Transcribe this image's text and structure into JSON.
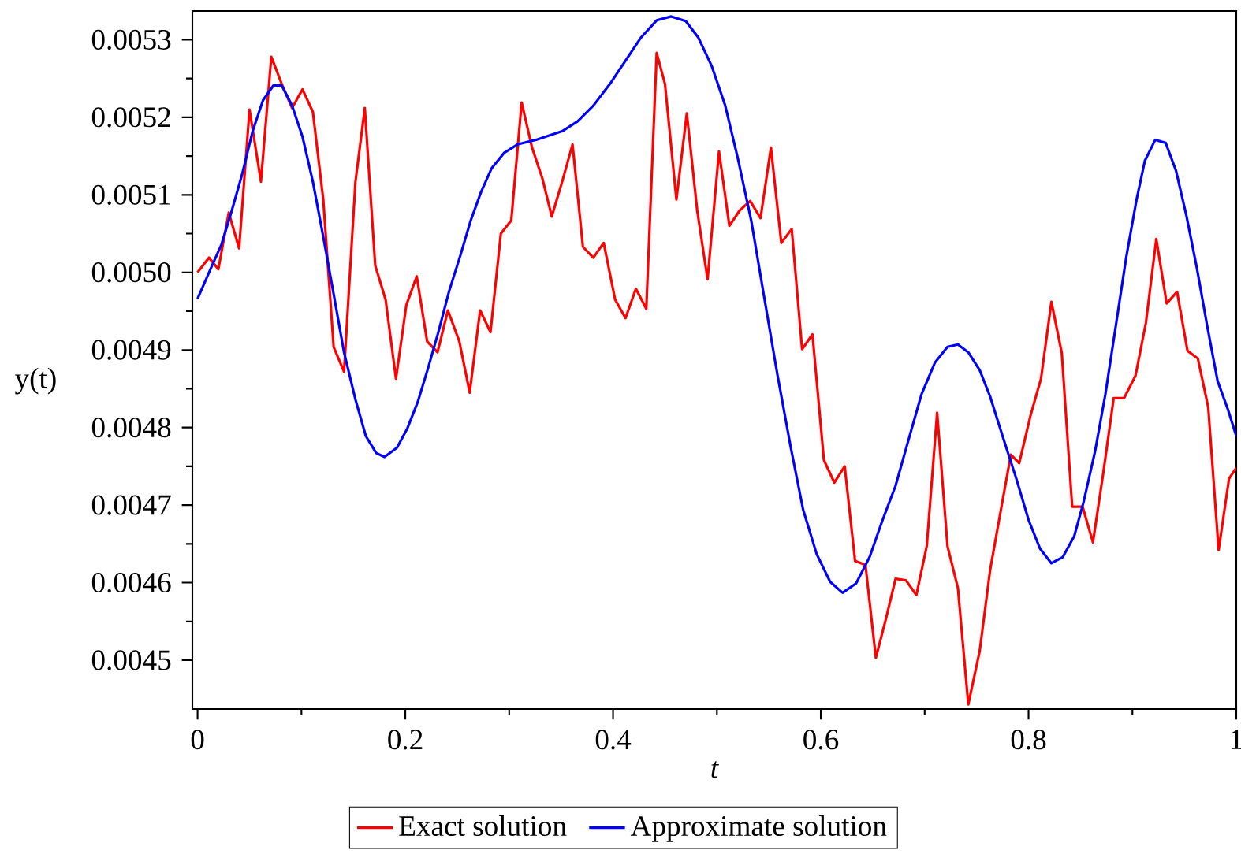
{
  "chart_data": {
    "type": "line",
    "xlabel": "t",
    "ylabel": "y(t)",
    "xlim": [
      -0.005,
      1.0
    ],
    "ylim": [
      0.004437,
      0.005337
    ],
    "xticks": [
      0,
      0.2,
      0.4,
      0.6,
      0.8,
      1
    ],
    "yticks": [
      0.0045,
      0.0046,
      0.0047,
      0.0048,
      0.0049,
      {
        "value": 0.005,
        "label": "0.0050"
      },
      0.0051,
      0.0052,
      0.0053
    ],
    "grid": false,
    "legend": "bottom",
    "marker": "none",
    "line_style": "solid",
    "series": [
      {
        "name": "Exact solution",
        "color": "#ff0000",
        "x": [
          0,
          0.011,
          0.02,
          0.03,
          0.04,
          0.05,
          0.061,
          0.071,
          0.081,
          0.091,
          0.101,
          0.111,
          0.121,
          0.131,
          0.141,
          0.152,
          0.161,
          0.171,
          0.181,
          0.191,
          0.201,
          0.211,
          0.221,
          0.231,
          0.241,
          0.252,
          0.262,
          0.272,
          0.282,
          0.292,
          0.302,
          0.312,
          0.322,
          0.332,
          0.341,
          0.351,
          0.361,
          0.371,
          0.381,
          0.391,
          0.402,
          0.412,
          0.422,
          0.432,
          0.442,
          0.45,
          0.461,
          0.471,
          0.481,
          0.491,
          0.502,
          0.512,
          0.522,
          0.532,
          0.542,
          0.552,
          0.562,
          0.572,
          0.582,
          0.592,
          0.603,
          0.613,
          0.623,
          0.633,
          0.643,
          0.653,
          0.663,
          0.672,
          0.682,
          0.692,
          0.702,
          0.712,
          0.722,
          0.732,
          0.742,
          0.753,
          0.763,
          0.773,
          0.783,
          0.791,
          0.802,
          0.812,
          0.822,
          0.832,
          0.842,
          0.852,
          0.862,
          0.872,
          0.882,
          0.892,
          0.903,
          0.913,
          0.923,
          0.933,
          0.943,
          0.953,
          0.963,
          0.973,
          0.983,
          0.993,
          1.0
        ],
        "values": [
          0.005,
          0.005019,
          0.005004,
          0.005077,
          0.005031,
          0.00521,
          0.005117,
          0.005278,
          0.005243,
          0.005212,
          0.005236,
          0.005207,
          0.005094,
          0.004904,
          0.004872,
          0.005117,
          0.005212,
          0.005009,
          0.004965,
          0.004863,
          0.004958,
          0.004995,
          0.004911,
          0.004897,
          0.004951,
          0.004911,
          0.004845,
          0.004951,
          0.004923,
          0.00505,
          0.005067,
          0.005219,
          0.005161,
          0.005121,
          0.005072,
          0.005117,
          0.005165,
          0.005033,
          0.005019,
          0.005038,
          0.004965,
          0.004941,
          0.004979,
          0.004953,
          0.005283,
          0.005243,
          0.005094,
          0.005205,
          0.00508,
          0.004991,
          0.005156,
          0.00506,
          0.00508,
          0.005092,
          0.00507,
          0.005161,
          0.005038,
          0.005056,
          0.004901,
          0.00492,
          0.004758,
          0.004729,
          0.00475,
          0.004628,
          0.004623,
          0.004503,
          0.004555,
          0.004605,
          0.004603,
          0.004584,
          0.004647,
          0.004819,
          0.004647,
          0.004593,
          0.004443,
          0.004512,
          0.004616,
          0.004691,
          0.004765,
          0.004754,
          0.004816,
          0.004863,
          0.004962,
          0.004896,
          0.004698,
          0.004698,
          0.004652,
          0.004742,
          0.004838,
          0.004838,
          0.004867,
          0.004935,
          0.005043,
          0.00496,
          0.004975,
          0.004899,
          0.004889,
          0.004826,
          0.004642,
          0.004734,
          0.004748
        ]
      },
      {
        "name": "Approximate solution",
        "color": "#0000ff",
        "x": [
          0,
          0.013,
          0.023,
          0.033,
          0.043,
          0.053,
          0.063,
          0.073,
          0.081,
          0.091,
          0.101,
          0.111,
          0.121,
          0.131,
          0.141,
          0.152,
          0.162,
          0.172,
          0.18,
          0.192,
          0.202,
          0.212,
          0.222,
          0.232,
          0.242,
          0.253,
          0.263,
          0.273,
          0.283,
          0.295,
          0.308,
          0.326,
          0.351,
          0.366,
          0.381,
          0.397,
          0.412,
          0.427,
          0.442,
          0.456,
          0.47,
          0.482,
          0.495,
          0.508,
          0.52,
          0.533,
          0.545,
          0.558,
          0.571,
          0.583,
          0.596,
          0.609,
          0.621,
          0.634,
          0.647,
          0.659,
          0.672,
          0.684,
          0.697,
          0.71,
          0.722,
          0.732,
          0.742,
          0.753,
          0.763,
          0.775,
          0.788,
          0.8,
          0.811,
          0.822,
          0.833,
          0.844,
          0.853,
          0.864,
          0.874,
          0.884,
          0.894,
          0.904,
          0.912,
          0.922,
          0.932,
          0.942,
          0.952,
          0.962,
          0.972,
          0.982,
          0.992,
          1.0
        ],
        "values": [
          0.004966,
          0.005006,
          0.005036,
          0.00508,
          0.005127,
          0.005182,
          0.005222,
          0.005241,
          0.005241,
          0.005215,
          0.005175,
          0.005117,
          0.005046,
          0.004972,
          0.004897,
          0.004836,
          0.004789,
          0.004767,
          0.004762,
          0.004774,
          0.004799,
          0.004833,
          0.004877,
          0.004924,
          0.004975,
          0.005022,
          0.005067,
          0.005104,
          0.005134,
          0.005154,
          0.005165,
          0.005171,
          0.005182,
          0.005195,
          0.005215,
          0.005243,
          0.005273,
          0.005303,
          0.005325,
          0.00533,
          0.005324,
          0.005303,
          0.005266,
          0.005215,
          0.005148,
          0.005067,
          0.004972,
          0.00487,
          0.004775,
          0.004694,
          0.004637,
          0.004601,
          0.004587,
          0.004599,
          0.004633,
          0.004679,
          0.004725,
          0.004782,
          0.004843,
          0.004884,
          0.004904,
          0.004907,
          0.004897,
          0.004874,
          0.00484,
          0.004789,
          0.004735,
          0.004681,
          0.004644,
          0.004625,
          0.004633,
          0.00466,
          0.004704,
          0.004769,
          0.004843,
          0.004931,
          0.005019,
          0.005094,
          0.005144,
          0.005171,
          0.005167,
          0.005131,
          0.005073,
          0.005006,
          0.004931,
          0.00486,
          0.004823,
          0.004789
        ]
      }
    ]
  }
}
